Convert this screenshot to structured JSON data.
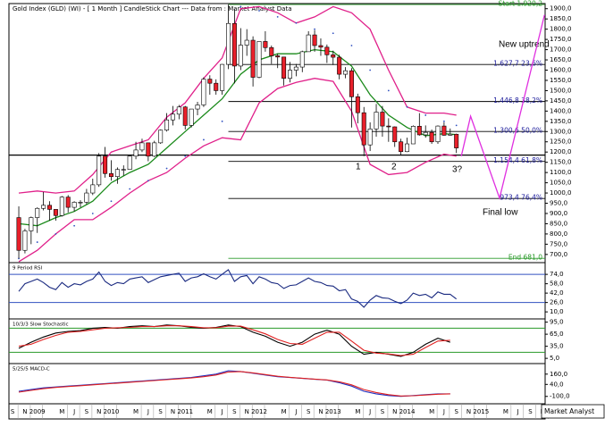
{
  "chart_data": {
    "type": "candlestick",
    "title": "Gold Index (GLD) (WI) - [ 1 Month ] CandleStick Chart --- Data from : Market Analyst Data",
    "xlim": [
      -1.6,
      85.4
    ],
    "xticks": [
      {
        "value": -1,
        "label": "S"
      },
      {
        "value": 1,
        "label": "N"
      },
      {
        "value": 3,
        "label": "2009"
      },
      {
        "value": 7,
        "label": "M"
      },
      {
        "value": 9,
        "label": "J"
      },
      {
        "value": 11,
        "label": "S"
      },
      {
        "value": 13,
        "label": "N"
      },
      {
        "value": 15,
        "label": "2010"
      },
      {
        "value": 19,
        "label": "M"
      },
      {
        "value": 21,
        "label": "J"
      },
      {
        "value": 23,
        "label": "S"
      },
      {
        "value": 25,
        "label": "N"
      },
      {
        "value": 27,
        "label": "2011"
      },
      {
        "value": 31,
        "label": "M"
      },
      {
        "value": 33,
        "label": "J"
      },
      {
        "value": 35,
        "label": "S"
      },
      {
        "value": 37,
        "label": "N"
      },
      {
        "value": 39,
        "label": "2012"
      },
      {
        "value": 43,
        "label": "M"
      },
      {
        "value": 45,
        "label": "J"
      },
      {
        "value": 47,
        "label": "S"
      },
      {
        "value": 49,
        "label": "N"
      },
      {
        "value": 51,
        "label": "2013"
      },
      {
        "value": 55,
        "label": "M"
      },
      {
        "value": 57,
        "label": "J"
      },
      {
        "value": 59,
        "label": "S"
      },
      {
        "value": 61,
        "label": "N"
      },
      {
        "value": 63,
        "label": "2014"
      },
      {
        "value": 67,
        "label": "M"
      },
      {
        "value": 69,
        "label": "J"
      },
      {
        "value": 71,
        "label": "S"
      },
      {
        "value": 73,
        "label": "N"
      },
      {
        "value": 75,
        "label": "2015"
      },
      {
        "value": 79,
        "label": "M"
      },
      {
        "value": 81,
        "label": "J"
      },
      {
        "value": 83,
        "label": "S"
      },
      {
        "value": 85,
        "label": "N"
      }
    ],
    "ylim": [
      660,
      1925
    ],
    "yticks": [
      {
        "value": 700,
        "label": "700,0"
      },
      {
        "value": 750,
        "label": "750,0"
      },
      {
        "value": 800,
        "label": "800,0"
      },
      {
        "value": 850,
        "label": "850,0"
      },
      {
        "value": 900,
        "label": "900,0"
      },
      {
        "value": 950,
        "label": "950,0"
      },
      {
        "value": 1000,
        "label": "1000,0"
      },
      {
        "value": 1050,
        "label": "1050,0"
      },
      {
        "value": 1100,
        "label": "1100,0"
      },
      {
        "value": 1150,
        "label": "1150,0"
      },
      {
        "value": 1200,
        "label": "1200,0"
      },
      {
        "value": 1250,
        "label": "1250,0"
      },
      {
        "value": 1300,
        "label": "1300,0"
      },
      {
        "value": 1350,
        "label": "1350,0"
      },
      {
        "value": 1400,
        "label": "1400,0"
      },
      {
        "value": 1450,
        "label": "1450,0"
      },
      {
        "value": 1500,
        "label": "1500,0"
      },
      {
        "value": 1550,
        "label": "1550,0"
      },
      {
        "value": 1600,
        "label": "1600,0"
      },
      {
        "value": 1650,
        "label": "1650,0"
      },
      {
        "value": 1700,
        "label": "1700,0"
      },
      {
        "value": 1750,
        "label": "1750,0"
      },
      {
        "value": 1800,
        "label": "1800,0"
      },
      {
        "value": 1850,
        "label": "1850,0"
      },
      {
        "value": 1900,
        "label": "1900,0"
      }
    ],
    "open": [
      880,
      720,
      815,
      880,
      925,
      940,
      920,
      890,
      980,
      930,
      955,
      955,
      1000,
      1040,
      1180,
      1095,
      1080,
      1115,
      1115,
      1180,
      1210,
      1245,
      1180,
      1245,
      1307,
      1357,
      1385,
      1420,
      1330,
      1410,
      1430,
      1556,
      1536,
      1500,
      1628,
      1828,
      1620,
      1722,
      1746,
      1565,
      1740,
      1710,
      1670,
      1664,
      1560,
      1600,
      1615,
      1690,
      1772,
      1720,
      1712,
      1675,
      1663,
      1580,
      1597,
      1470,
      1392,
      1235,
      1313,
      1395,
      1327,
      1323,
      1250,
      1202,
      1240,
      1326,
      1284,
      1296,
      1250,
      1327,
      1282,
      1287
    ],
    "high": [
      935,
      825,
      885,
      930,
      1005,
      960,
      920,
      985,
      990,
      960,
      965,
      1020,
      1070,
      1195,
      1225,
      1160,
      1125,
      1135,
      1185,
      1250,
      1265,
      1245,
      1255,
      1310,
      1390,
      1425,
      1430,
      1425,
      1410,
      1445,
      1565,
      1575,
      1555,
      1630,
      1920,
      1900,
      1805,
      1800,
      1765,
      1740,
      1790,
      1720,
      1680,
      1665,
      1640,
      1630,
      1695,
      1790,
      1795,
      1755,
      1725,
      1695,
      1675,
      1615,
      1610,
      1485,
      1420,
      1345,
      1435,
      1425,
      1365,
      1325,
      1265,
      1270,
      1330,
      1390,
      1330,
      1310,
      1330,
      1345,
      1315,
      1290
    ],
    "low": [
      680,
      705,
      750,
      805,
      915,
      865,
      865,
      885,
      905,
      910,
      930,
      945,
      990,
      1030,
      1075,
      1060,
      1045,
      1085,
      1115,
      1165,
      1200,
      1155,
      1175,
      1240,
      1300,
      1330,
      1360,
      1310,
      1320,
      1380,
      1420,
      1480,
      1480,
      1480,
      1605,
      1535,
      1600,
      1670,
      1520,
      1560,
      1690,
      1630,
      1610,
      1525,
      1540,
      1570,
      1590,
      1690,
      1690,
      1670,
      1635,
      1625,
      1555,
      1560,
      1320,
      1340,
      1180,
      1205,
      1275,
      1275,
      1250,
      1225,
      1185,
      1200,
      1240,
      1280,
      1270,
      1240,
      1240,
      1280,
      1280,
      1195
    ],
    "close": [
      720,
      815,
      880,
      925,
      940,
      920,
      890,
      980,
      930,
      955,
      955,
      1000,
      1040,
      1180,
      1095,
      1080,
      1115,
      1115,
      1180,
      1210,
      1245,
      1180,
      1245,
      1307,
      1357,
      1385,
      1420,
      1330,
      1410,
      1430,
      1556,
      1536,
      1500,
      1628,
      1828,
      1620,
      1722,
      1746,
      1565,
      1740,
      1710,
      1670,
      1664,
      1560,
      1600,
      1615,
      1690,
      1772,
      1720,
      1712,
      1675,
      1663,
      1580,
      1597,
      1470,
      1392,
      1235,
      1313,
      1395,
      1327,
      1323,
      1250,
      1202,
      1240,
      1326,
      1284,
      1296,
      1250,
      1327,
      1282,
      1287,
      1220
    ],
    "up_color": "#ffffff",
    "down_color": "#e8202a",
    "overlays": [
      {
        "type": "line",
        "color": "#e0208a",
        "x": [
          0,
          3,
          6,
          9,
          12,
          15,
          18,
          21,
          24,
          27,
          30,
          33,
          36,
          39,
          42,
          45,
          48,
          51,
          54,
          57,
          60,
          63,
          66,
          69,
          71
        ],
        "values": [
          1000,
          1010,
          1000,
          1010,
          1090,
          1200,
          1230,
          1260,
          1370,
          1440,
          1560,
          1660,
          1900,
          1910,
          1880,
          1830,
          1860,
          1910,
          1880,
          1800,
          1600,
          1420,
          1390,
          1390,
          1380
        ]
      },
      {
        "type": "line",
        "color": "#e0208a",
        "x": [
          0,
          3,
          6,
          9,
          12,
          15,
          18,
          21,
          24,
          27,
          30,
          33,
          36,
          39,
          42,
          45,
          48,
          51,
          54,
          57,
          60,
          63,
          66,
          69,
          71
        ],
        "values": [
          665,
          720,
          800,
          870,
          870,
          930,
          1000,
          1060,
          1100,
          1170,
          1230,
          1270,
          1260,
          1440,
          1510,
          1540,
          1560,
          1545,
          1400,
          1140,
          1090,
          1100,
          1150,
          1190,
          1180
        ]
      },
      {
        "type": "line",
        "color": "#1a8a1a",
        "x": [
          0,
          3,
          6,
          9,
          12,
          15,
          18,
          21,
          24,
          27,
          30,
          33,
          36,
          39,
          42,
          45,
          48,
          51,
          54,
          57,
          60,
          63,
          66,
          69,
          71
        ],
        "values": [
          850,
          840,
          880,
          910,
          960,
          1050,
          1100,
          1140,
          1220,
          1300,
          1380,
          1460,
          1580,
          1650,
          1680,
          1680,
          1700,
          1690,
          1620,
          1480,
          1380,
          1320,
          1280,
          1290,
          1285
        ]
      },
      {
        "type": "dots",
        "color": "#3050c0",
        "x": [
          0,
          3,
          6,
          9,
          12,
          15,
          18,
          21,
          24,
          27,
          30,
          33,
          36,
          39,
          42,
          45,
          48,
          51,
          54,
          57,
          60,
          63,
          66,
          69,
          71
        ],
        "values": [
          680,
          760,
          800,
          840,
          900,
          960,
          1020,
          1060,
          1120,
          1180,
          1260,
          1350,
          1910,
          1890,
          1860,
          1830,
          1800,
          1780,
          1720,
          1600,
          1500,
          1420,
          1380,
          1350,
          1330
        ]
      }
    ],
    "levels": [
      {
        "value": 1920.2,
        "label": "Start 1.920,2",
        "color": "#2a9a2a"
      },
      {
        "value": 1627.7,
        "label": "1.627,7 23,6%",
        "color": "#1a1a9a"
      },
      {
        "value": 1446.8,
        "label": "1.446,8 38,2%",
        "color": "#1a1a9a"
      },
      {
        "value": 1300.6,
        "label": "1.300,6 50,0%",
        "color": "#1a1a9a"
      },
      {
        "value": 1154.4,
        "label": "1.154,4 61,8%",
        "color": "#1a1a9a"
      },
      {
        "value": 973.4,
        "label": "973,4 76,4%",
        "color": "#1a1a9a"
      },
      {
        "value": 681.0,
        "label": "End 681,0",
        "color": "#2a9a2a"
      }
    ],
    "support": 1185,
    "projection": {
      "color": "#e030e0",
      "x": [
        71.8,
        73.3,
        78,
        85.3
      ],
      "values": [
        1180,
        1375,
        975,
        1870
      ]
    },
    "annotations": [
      "New uptrend",
      "Final low",
      "1",
      "2",
      "3?"
    ],
    "source": "Market Analyst",
    "panels": [
      {
        "type": "line",
        "title": "9 Period RSI",
        "ylim": [
          -2,
          94
        ],
        "yticks": [
          {
            "value": 74,
            "label": "74,0"
          },
          {
            "value": 58,
            "label": "58,0"
          },
          {
            "value": 42,
            "label": "42,0"
          },
          {
            "value": 26,
            "label": "26,0"
          },
          {
            "value": 10,
            "label": "10,0"
          }
        ],
        "levels": [
          74,
          26
        ],
        "level_color": "#3050c0",
        "series": [
          {
            "color": "#1a2a80",
            "values": [
              45,
              58,
              62,
              66,
              60,
              52,
              48,
              60,
              52,
              58,
              56,
              62,
              66,
              78,
              62,
              55,
              60,
              58,
              66,
              68,
              70,
              60,
              65,
              70,
              72,
              74,
              76,
              62,
              68,
              70,
              75,
              70,
              66,
              74,
              82,
              62,
              70,
              72,
              58,
              70,
              66,
              60,
              58,
              50,
              55,
              56,
              62,
              68,
              62,
              60,
              55,
              54,
              46,
              48,
              32,
              28,
              18,
              30,
              38,
              34,
              33,
              28,
              24,
              30,
              42,
              38,
              40,
              34,
              44,
              40,
              40,
              32
            ]
          }
        ]
      },
      {
        "type": "line",
        "title": "10/3/3 Slow Stochastic",
        "ylim": [
          -8,
          103
        ],
        "yticks": [
          {
            "value": 95,
            "label": "95,0"
          },
          {
            "value": 65,
            "label": "65,0"
          },
          {
            "value": 35,
            "label": "35,0"
          },
          {
            "value": 5,
            "label": "5,0"
          }
        ],
        "levels": [
          80,
          20
        ],
        "level_color": "#2a9a2a",
        "x": [
          0,
          2,
          4,
          6,
          8,
          10,
          12,
          14,
          16,
          18,
          20,
          22,
          24,
          26,
          28,
          30,
          32,
          34,
          36,
          38,
          40,
          42,
          44,
          46,
          48,
          50,
          52,
          54,
          56,
          58,
          60,
          62,
          64,
          66,
          68,
          70
        ],
        "series": [
          {
            "color": "#000000",
            "values": [
              30,
              45,
              58,
              68,
              72,
              74,
              80,
              82,
              80,
              84,
              86,
              84,
              88,
              86,
              82,
              80,
              82,
              88,
              84,
              70,
              60,
              45,
              35,
              45,
              65,
              75,
              65,
              35,
              15,
              20,
              15,
              10,
              20,
              40,
              55,
              45
            ]
          },
          {
            "color": "#e02020",
            "values": [
              35,
              40,
              52,
              62,
              70,
              72,
              76,
              80,
              81,
              82,
              84,
              84,
              86,
              86,
              84,
              81,
              81,
              85,
              85,
              76,
              66,
              52,
              42,
              40,
              55,
              70,
              70,
              48,
              25,
              18,
              16,
              12,
              15,
              32,
              48,
              50
            ]
          }
        ]
      },
      {
        "type": "line",
        "title": "5/25/5 MACD-C",
        "ylim": [
          -186,
          283
        ],
        "yticks": [
          {
            "value": 160,
            "label": "160,0"
          },
          {
            "value": 40,
            "label": "40,0"
          },
          {
            "value": -100,
            "label": "-100,0"
          }
        ],
        "levels": [],
        "level_color": "#000000",
        "x": [
          0,
          2,
          4,
          6,
          8,
          10,
          12,
          14,
          16,
          18,
          20,
          22,
          24,
          26,
          28,
          30,
          32,
          34,
          36,
          38,
          40,
          42,
          44,
          46,
          48,
          50,
          52,
          54,
          56,
          58,
          60,
          62,
          64,
          66,
          68,
          70
        ],
        "series": [
          {
            "color": "#2030c0",
            "values": [
              -40,
              -20,
              0,
              10,
              20,
              30,
              40,
              50,
              60,
              70,
              80,
              90,
              100,
              110,
              120,
              140,
              160,
              200,
              190,
              170,
              150,
              130,
              120,
              110,
              100,
              90,
              60,
              20,
              -40,
              -70,
              -90,
              -100,
              -90,
              -80,
              -70,
              -70
            ]
          },
          {
            "color": "#e02020",
            "values": [
              -50,
              -30,
              -10,
              5,
              15,
              25,
              35,
              45,
              55,
              65,
              75,
              85,
              95,
              105,
              115,
              130,
              150,
              185,
              190,
              175,
              155,
              135,
              122,
              112,
              102,
              92,
              70,
              35,
              -20,
              -55,
              -80,
              -95,
              -92,
              -84,
              -74,
              -70
            ]
          }
        ]
      }
    ]
  }
}
